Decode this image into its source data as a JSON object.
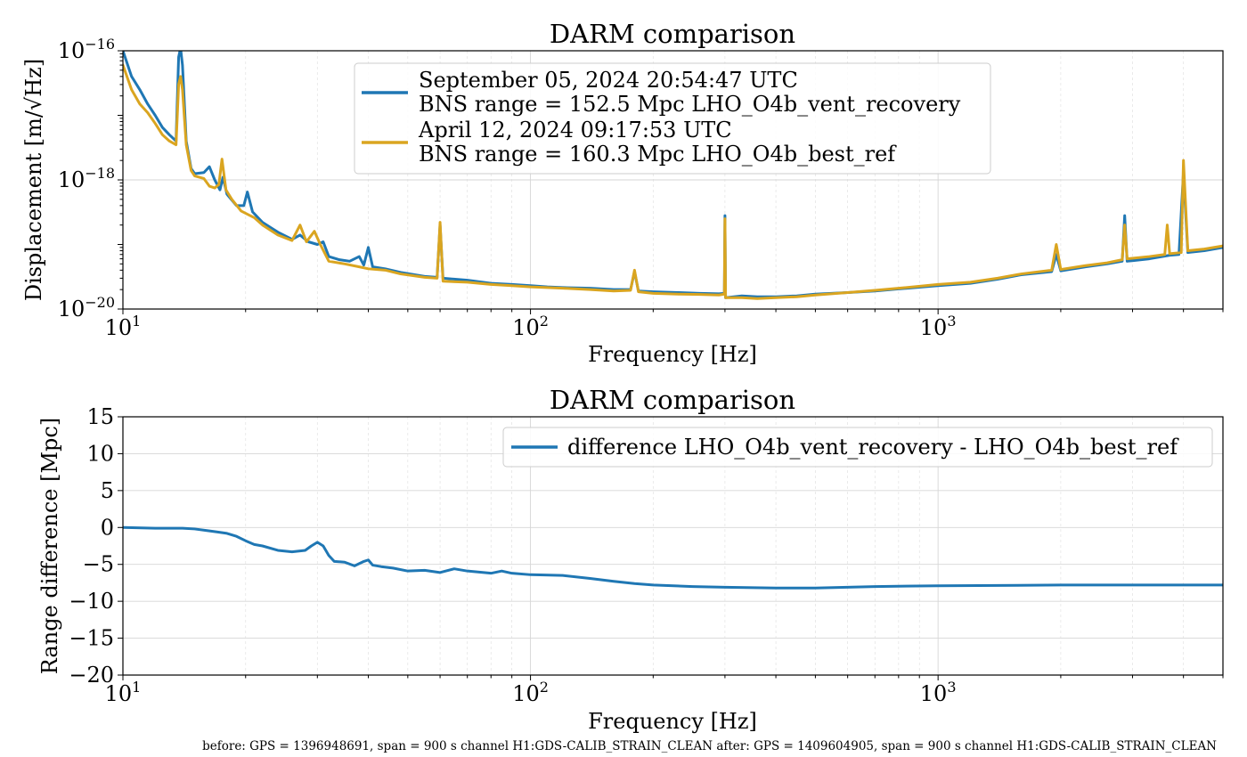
{
  "footer": "before: GPS = 1396948691, span = 900 s channel H1:GDS-CALIB_STRAIN_CLEAN after: GPS = 1409604905, span = 900 s channel H1:GDS-CALIB_STRAIN_CLEAN",
  "chart_data": [
    {
      "type": "line",
      "title": "DARM comparison",
      "xlabel": "Frequency [Hz]",
      "ylabel": "Displacement [m/√Hz]",
      "xscale": "log",
      "yscale": "log",
      "xlim": [
        10,
        5000
      ],
      "ylim": [
        1e-20,
        1e-16
      ],
      "x_tick_labels": [
        {
          "value": 10,
          "base": "10",
          "exp": "1"
        },
        {
          "value": 100,
          "base": "10",
          "exp": "2"
        },
        {
          "value": 1000,
          "base": "10",
          "exp": "3"
        }
      ],
      "y_tick_labels": [
        {
          "value": 1e-16,
          "base": "10",
          "exp": "−16"
        },
        {
          "value": 1e-18,
          "base": "10",
          "exp": "−18"
        },
        {
          "value": 1e-20,
          "base": "10",
          "exp": "−20"
        }
      ],
      "grid": true,
      "legend": "top-center",
      "series": [
        {
          "name": "September 05, 2024 20:54:47 UTC\nBNS range = 152.5 Mpc LHO_O4b_vent_recovery",
          "legend_lines": [
            "September 05, 2024 20:54:47 UTC",
            "BNS range = 152.5 Mpc LHO_O4b_vent_recovery"
          ],
          "color": "#1f77b4",
          "points": [
            [
              10,
              1e-16
            ],
            [
              10.5,
              4e-17
            ],
            [
              11,
              2.5e-17
            ],
            [
              11.5,
              1.5e-17
            ],
            [
              12,
              1e-17
            ],
            [
              12.5,
              6.5e-18
            ],
            [
              13,
              5e-18
            ],
            [
              13.5,
              4e-18
            ],
            [
              13.7,
              8e-17
            ],
            [
              13.85,
              1.1e-16
            ],
            [
              14,
              6e-17
            ],
            [
              14.3,
              4e-18
            ],
            [
              14.7,
              1.5e-18
            ],
            [
              15,
              1.25e-18
            ],
            [
              15.8,
              1.3e-18
            ],
            [
              16.3,
              1.6e-18
            ],
            [
              16.8,
              1e-18
            ],
            [
              17.3,
              7e-19
            ],
            [
              17.6,
              1.1e-18
            ],
            [
              18,
              6e-19
            ],
            [
              19,
              4e-19
            ],
            [
              19.8,
              4e-19
            ],
            [
              20.2,
              6.5e-19
            ],
            [
              20.8,
              3.2e-19
            ],
            [
              22,
              2.2e-19
            ],
            [
              24,
              1.55e-19
            ],
            [
              26,
              1.2e-19
            ],
            [
              27.2,
              1.4e-19
            ],
            [
              28.5,
              1.1e-19
            ],
            [
              30,
              1e-19
            ],
            [
              31,
              1.1e-19
            ],
            [
              32,
              6.5e-20
            ],
            [
              34,
              5.8e-20
            ],
            [
              36,
              5.5e-20
            ],
            [
              38,
              6.5e-20
            ],
            [
              39,
              4.8e-20
            ],
            [
              40,
              9e-20
            ],
            [
              41,
              4.5e-20
            ],
            [
              44,
              4.2e-20
            ],
            [
              48,
              3.7e-20
            ],
            [
              55,
              3.2e-20
            ],
            [
              59,
              3.1e-20
            ],
            [
              60,
              2e-19
            ],
            [
              61,
              3e-20
            ],
            [
              70,
              2.8e-20
            ],
            [
              80,
              2.5e-20
            ],
            [
              90,
              2.4e-20
            ],
            [
              100,
              2.3e-20
            ],
            [
              110,
              2.2e-20
            ],
            [
              120,
              2.15e-20
            ],
            [
              140,
              2.1e-20
            ],
            [
              160,
              2e-20
            ],
            [
              176,
              2e-20
            ],
            [
              180,
              3.8e-20
            ],
            [
              184,
              1.9e-20
            ],
            [
              200,
              1.85e-20
            ],
            [
              230,
              1.8e-20
            ],
            [
              260,
              1.75e-20
            ],
            [
              290,
              1.72e-20
            ],
            [
              299,
              1.75e-20
            ],
            [
              300,
              2.8e-19
            ],
            [
              301,
              1.5e-20
            ],
            [
              330,
              1.6e-20
            ],
            [
              360,
              1.55e-20
            ],
            [
              400,
              1.55e-20
            ],
            [
              450,
              1.6e-20
            ],
            [
              500,
              1.7e-20
            ],
            [
              600,
              1.8e-20
            ],
            [
              700,
              1.9e-20
            ],
            [
              800,
              2.05e-20
            ],
            [
              1000,
              2.3e-20
            ],
            [
              1200,
              2.5e-20
            ],
            [
              1400,
              2.9e-20
            ],
            [
              1600,
              3.4e-20
            ],
            [
              1900,
              3.8e-20
            ],
            [
              1950,
              7e-20
            ],
            [
              2000,
              3.9e-20
            ],
            [
              2300,
              4.5e-20
            ],
            [
              2600,
              5e-20
            ],
            [
              2830,
              5.5e-20
            ],
            [
              2870,
              2.8e-19
            ],
            [
              2910,
              5.5e-20
            ],
            [
              3300,
              6e-20
            ],
            [
              3700,
              6.8e-20
            ],
            [
              3900,
              7e-20
            ],
            [
              4000,
              1.3e-18
            ],
            [
              4100,
              7.5e-20
            ],
            [
              4500,
              8e-20
            ],
            [
              5000,
              9e-20
            ]
          ]
        },
        {
          "name": "April 12, 2024 09:17:53 UTC\nBNS range = 160.3 Mpc LHO_O4b_best_ref",
          "legend_lines": [
            "April 12, 2024 09:17:53 UTC",
            "BNS range = 160.3 Mpc LHO_O4b_best_ref"
          ],
          "color": "#daa520",
          "points": [
            [
              10,
              6e-17
            ],
            [
              10.5,
              2.5e-17
            ],
            [
              11,
              1.5e-17
            ],
            [
              11.5,
              1.1e-17
            ],
            [
              12,
              7.5e-18
            ],
            [
              12.5,
              5e-18
            ],
            [
              13,
              4e-18
            ],
            [
              13.5,
              3.5e-18
            ],
            [
              13.7,
              3e-17
            ],
            [
              13.85,
              4e-17
            ],
            [
              14,
              2.5e-17
            ],
            [
              14.3,
              3.5e-18
            ],
            [
              14.7,
              1.4e-18
            ],
            [
              15,
              1.15e-18
            ],
            [
              15.8,
              1.05e-18
            ],
            [
              16.3,
              8e-19
            ],
            [
              16.8,
              7.5e-19
            ],
            [
              17.2,
              8.5e-19
            ],
            [
              17.5,
              2.1e-18
            ],
            [
              17.9,
              7e-19
            ],
            [
              18.5,
              5e-19
            ],
            [
              19.5,
              3.3e-19
            ],
            [
              21,
              2.6e-19
            ],
            [
              22,
              2e-19
            ],
            [
              24,
              1.4e-19
            ],
            [
              26,
              1.15e-19
            ],
            [
              27.2,
              2e-19
            ],
            [
              28.2,
              1.1e-19
            ],
            [
              29.5,
              1.6e-19
            ],
            [
              30.5,
              1e-19
            ],
            [
              32,
              5.5e-20
            ],
            [
              35,
              5e-20
            ],
            [
              38,
              4.5e-20
            ],
            [
              40,
              4.2e-20
            ],
            [
              44,
              4e-20
            ],
            [
              48,
              3.5e-20
            ],
            [
              55,
              3.1e-20
            ],
            [
              59,
              3e-20
            ],
            [
              60,
              2.2e-19
            ],
            [
              61,
              2.7e-20
            ],
            [
              70,
              2.6e-20
            ],
            [
              80,
              2.4e-20
            ],
            [
              90,
              2.3e-20
            ],
            [
              100,
              2.2e-20
            ],
            [
              120,
              2.1e-20
            ],
            [
              140,
              2e-20
            ],
            [
              160,
              1.9e-20
            ],
            [
              176,
              1.95e-20
            ],
            [
              180,
              4e-20
            ],
            [
              184,
              1.85e-20
            ],
            [
              200,
              1.75e-20
            ],
            [
              230,
              1.7e-20
            ],
            [
              260,
              1.68e-20
            ],
            [
              290,
              1.65e-20
            ],
            [
              299,
              1.7e-20
            ],
            [
              300,
              2.5e-19
            ],
            [
              301,
              1.5e-20
            ],
            [
              330,
              1.5e-20
            ],
            [
              360,
              1.45e-20
            ],
            [
              400,
              1.5e-20
            ],
            [
              450,
              1.55e-20
            ],
            [
              500,
              1.65e-20
            ],
            [
              600,
              1.8e-20
            ],
            [
              700,
              1.95e-20
            ],
            [
              800,
              2.1e-20
            ],
            [
              1000,
              2.4e-20
            ],
            [
              1200,
              2.6e-20
            ],
            [
              1400,
              3e-20
            ],
            [
              1600,
              3.5e-20
            ],
            [
              1900,
              4e-20
            ],
            [
              1950,
              1e-19
            ],
            [
              2000,
              4.1e-20
            ],
            [
              2300,
              4.7e-20
            ],
            [
              2600,
              5.2e-20
            ],
            [
              2830,
              5.8e-20
            ],
            [
              2870,
              2e-19
            ],
            [
              2910,
              6e-20
            ],
            [
              3300,
              6.5e-20
            ],
            [
              3600,
              7e-20
            ],
            [
              3650,
              2e-19
            ],
            [
              3700,
              7.2e-20
            ],
            [
              3950,
              7.5e-20
            ],
            [
              4000,
              2e-18
            ],
            [
              4100,
              8e-20
            ],
            [
              4500,
              8.5e-20
            ],
            [
              5000,
              9.5e-20
            ]
          ]
        }
      ]
    },
    {
      "type": "line",
      "title": "DARM comparison",
      "xlabel": "Frequency [Hz]",
      "ylabel": "Range difference [Mpc]",
      "xscale": "log",
      "yscale": "linear",
      "xlim": [
        10,
        5000
      ],
      "ylim": [
        -20,
        15
      ],
      "x_tick_labels": [
        {
          "value": 10,
          "base": "10",
          "exp": "1"
        },
        {
          "value": 100,
          "base": "10",
          "exp": "2"
        },
        {
          "value": 1000,
          "base": "10",
          "exp": "3"
        }
      ],
      "y_ticks": [
        15,
        10,
        5,
        0,
        -5,
        -10,
        -15,
        -20
      ],
      "y_tick_labels": [
        "15",
        "10",
        "5",
        "0",
        "−5",
        "−10",
        "−15",
        "−20"
      ],
      "grid": true,
      "legend": "top-right",
      "series": [
        {
          "name": "difference LHO_O4b_vent_recovery - LHO_O4b_best_ref",
          "color": "#1f77b4",
          "points": [
            [
              10,
              0
            ],
            [
              12,
              -0.1
            ],
            [
              14,
              -0.1
            ],
            [
              15,
              -0.2
            ],
            [
              16,
              -0.4
            ],
            [
              17,
              -0.6
            ],
            [
              18,
              -0.8
            ],
            [
              19,
              -1.2
            ],
            [
              20,
              -1.8
            ],
            [
              21,
              -2.3
            ],
            [
              22,
              -2.5
            ],
            [
              24,
              -3.1
            ],
            [
              26,
              -3.3
            ],
            [
              28,
              -3.1
            ],
            [
              29,
              -2.5
            ],
            [
              30,
              -2.0
            ],
            [
              31,
              -2.5
            ],
            [
              32,
              -3.8
            ],
            [
              33,
              -4.6
            ],
            [
              35,
              -4.7
            ],
            [
              37,
              -5.2
            ],
            [
              39,
              -4.6
            ],
            [
              40,
              -4.4
            ],
            [
              41,
              -5.1
            ],
            [
              43,
              -5.3
            ],
            [
              46,
              -5.5
            ],
            [
              50,
              -5.9
            ],
            [
              55,
              -5.8
            ],
            [
              60,
              -6.1
            ],
            [
              65,
              -5.6
            ],
            [
              70,
              -5.9
            ],
            [
              80,
              -6.2
            ],
            [
              85,
              -5.9
            ],
            [
              90,
              -6.2
            ],
            [
              100,
              -6.4
            ],
            [
              120,
              -6.5
            ],
            [
              140,
              -6.9
            ],
            [
              160,
              -7.3
            ],
            [
              180,
              -7.6
            ],
            [
              200,
              -7.8
            ],
            [
              250,
              -8.0
            ],
            [
              300,
              -8.1
            ],
            [
              400,
              -8.2
            ],
            [
              500,
              -8.2
            ],
            [
              700,
              -8.0
            ],
            [
              1000,
              -7.9
            ],
            [
              2000,
              -7.8
            ],
            [
              3000,
              -7.8
            ],
            [
              5000,
              -7.8
            ]
          ]
        }
      ]
    }
  ]
}
